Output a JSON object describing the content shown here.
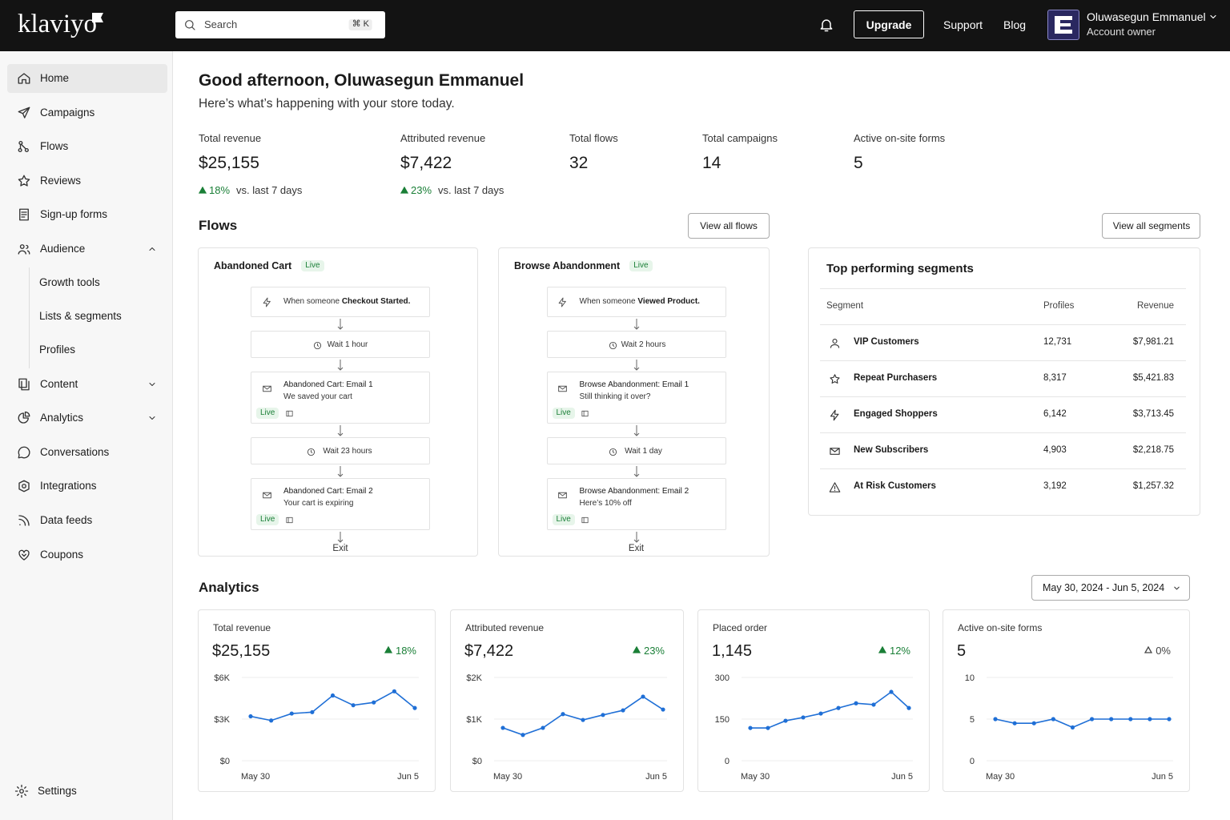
{
  "topbar": {
    "logo": "klaviyo",
    "search": {
      "placeholder": "Search",
      "shortcut": "⌘ K"
    },
    "upgrade": "Upgrade",
    "links": [
      "Support",
      "Blog"
    ],
    "user": {
      "name": "Oluwasegun Emmanuel",
      "role": "Account owner"
    }
  },
  "sidebar": {
    "items": [
      {
        "label": "Home",
        "active": true
      },
      {
        "label": "Campaigns"
      },
      {
        "label": "Flows"
      },
      {
        "label": "Reviews"
      },
      {
        "label": "Sign-up forms"
      },
      {
        "label": "Audience",
        "expanded": true,
        "children": [
          "Growth tools",
          "Lists & segments",
          "Profiles"
        ]
      },
      {
        "label": "Content",
        "expanded": false
      },
      {
        "label": "Analytics",
        "expanded": false
      },
      {
        "label": "Conversations"
      },
      {
        "label": "Integrations"
      },
      {
        "label": "Data feeds"
      },
      {
        "label": "Coupons"
      }
    ],
    "settings": "Settings"
  },
  "greeting": {
    "title": "Good afternoon, Oluwasegun Emmanuel",
    "subtitle": "Here’s what’s happening with your store today."
  },
  "stats": [
    {
      "label": "Total revenue",
      "value": "$25,155",
      "change": "18%",
      "compare": "vs. last 7 days"
    },
    {
      "label": "Attributed revenue",
      "value": "$7,422",
      "change": "23%",
      "compare": "vs. last 7 days"
    },
    {
      "label": "Total flows",
      "value": "32"
    },
    {
      "label": "Total campaigns",
      "value": "14"
    },
    {
      "label": "Active on-site forms",
      "value": "5"
    }
  ],
  "flows": {
    "title": "Flows",
    "button": "View all flows",
    "cards": [
      {
        "name": "Abandoned Cart",
        "status": "Live",
        "steps": [
          {
            "text": "When someone",
            "event": "Checkout Started."
          },
          {
            "text": "Wait 1 hour"
          },
          {
            "title": "Abandoned Cart: Email 1",
            "text": "We saved your cart",
            "status": "Live"
          },
          {
            "text": "Wait 23 hours"
          },
          {
            "title": "Abandoned Cart: Email 2",
            "text": "Your cart is expiring",
            "status": "Live"
          }
        ],
        "exit": "Exit"
      },
      {
        "name": "Browse Abandonment",
        "status": "Live",
        "steps": [
          {
            "text": "When someone",
            "event": "Viewed Product."
          },
          {
            "text": "Wait 2 hours"
          },
          {
            "title": "Browse Abandonment: Email 1",
            "text": "Still thinking it over?",
            "status": "Live"
          },
          {
            "text": "Wait 1 day"
          },
          {
            "title": "Browse Abandonment: Email 2",
            "text": "Here’s 10% off",
            "status": "Live"
          }
        ],
        "exit": "Exit"
      }
    ]
  },
  "segments": {
    "button": "View all segments",
    "title": "Top performing segments",
    "columns": [
      "Segment",
      "Profiles",
      "Revenue"
    ],
    "rows": [
      [
        "VIP Customers",
        "12,731",
        "$7,981.21"
      ],
      [
        "Repeat Purchasers",
        "8,317",
        "$5,421.83"
      ],
      [
        "Engaged Shoppers",
        "6,142",
        "$3,713.45"
      ],
      [
        "New Subscribers",
        "4,903",
        "$2,218.75"
      ],
      [
        "At Risk Customers",
        "3,192",
        "$1,257.32"
      ]
    ]
  },
  "analytics": {
    "title": "Analytics",
    "date_range": "May 30, 2024 - Jun 5, 2024"
  },
  "chart_data": [
    {
      "type": "line",
      "title": "Total revenue",
      "headline": "$25,155",
      "change": "18%",
      "trend": "up",
      "color": "#1f6fd6",
      "grid": true,
      "categories": [
        "May 30",
        null,
        null,
        null,
        null,
        null,
        null,
        null,
        "Jun 5"
      ],
      "values": [
        3200,
        2900,
        3400,
        3500,
        4700,
        4000,
        4200,
        5000,
        3800
      ],
      "ylim": [
        0,
        6000
      ],
      "yticks": [
        {
          "value": 0,
          "label": "$0"
        },
        {
          "value": 3000,
          "label": "$3K"
        },
        {
          "value": 6000,
          "label": "$6K"
        }
      ]
    },
    {
      "type": "line",
      "title": "Attributed revenue",
      "headline": "$7,422",
      "change": "23%",
      "trend": "up",
      "color": "#1f6fd6",
      "grid": true,
      "categories": [
        "May 30",
        null,
        null,
        null,
        null,
        null,
        null,
        null,
        "Jun 5"
      ],
      "values": [
        790,
        620,
        790,
        1120,
        980,
        1100,
        1210,
        1540,
        1230
      ],
      "ylim": [
        0,
        2000
      ],
      "yticks": [
        {
          "value": 0,
          "label": "$0"
        },
        {
          "value": 1000,
          "label": "$1K"
        },
        {
          "value": 2000,
          "label": "$2K"
        }
      ]
    },
    {
      "type": "line",
      "title": "Placed order",
      "headline": "1,145",
      "change": "12%",
      "trend": "up",
      "color": "#1f6fd6",
      "grid": true,
      "categories": [
        "May 30",
        null,
        null,
        null,
        null,
        null,
        null,
        null,
        null,
        "Jun 5"
      ],
      "values": [
        118,
        118,
        144,
        156,
        170,
        190,
        207,
        202,
        248,
        190
      ],
      "ylim": [
        0,
        300
      ],
      "yticks": [
        0,
        150,
        300
      ]
    },
    {
      "type": "line",
      "title": "Active on-site forms",
      "headline": "5",
      "change": "0%",
      "trend": "flat",
      "color": "#1f6fd6",
      "grid": true,
      "categories": [
        "May 30",
        null,
        null,
        null,
        null,
        null,
        null,
        null,
        null,
        "Jun 5"
      ],
      "values": [
        5,
        4.5,
        4.5,
        5,
        4,
        5,
        5,
        5,
        5,
        5
      ],
      "ylim": [
        0,
        10
      ],
      "yticks": [
        0,
        5,
        10
      ]
    }
  ]
}
